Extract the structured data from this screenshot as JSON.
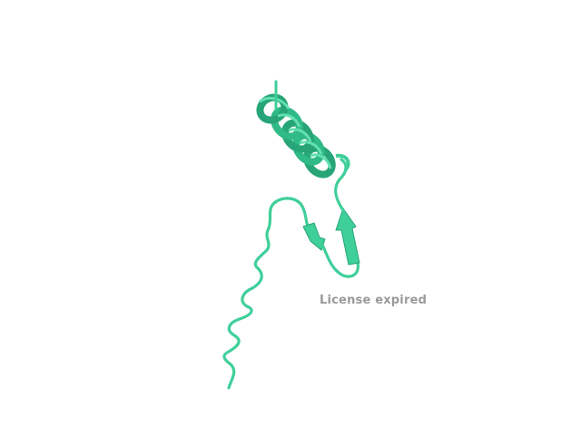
{
  "viewer": {
    "watermark_text": "License expired"
  },
  "colors": {
    "background": "#ffffff",
    "ribbon": "#3fcf9a",
    "ribbon_dark": "#27a578",
    "ribbon_light": "#63e0b3",
    "watermark": "#9a9a9a"
  }
}
